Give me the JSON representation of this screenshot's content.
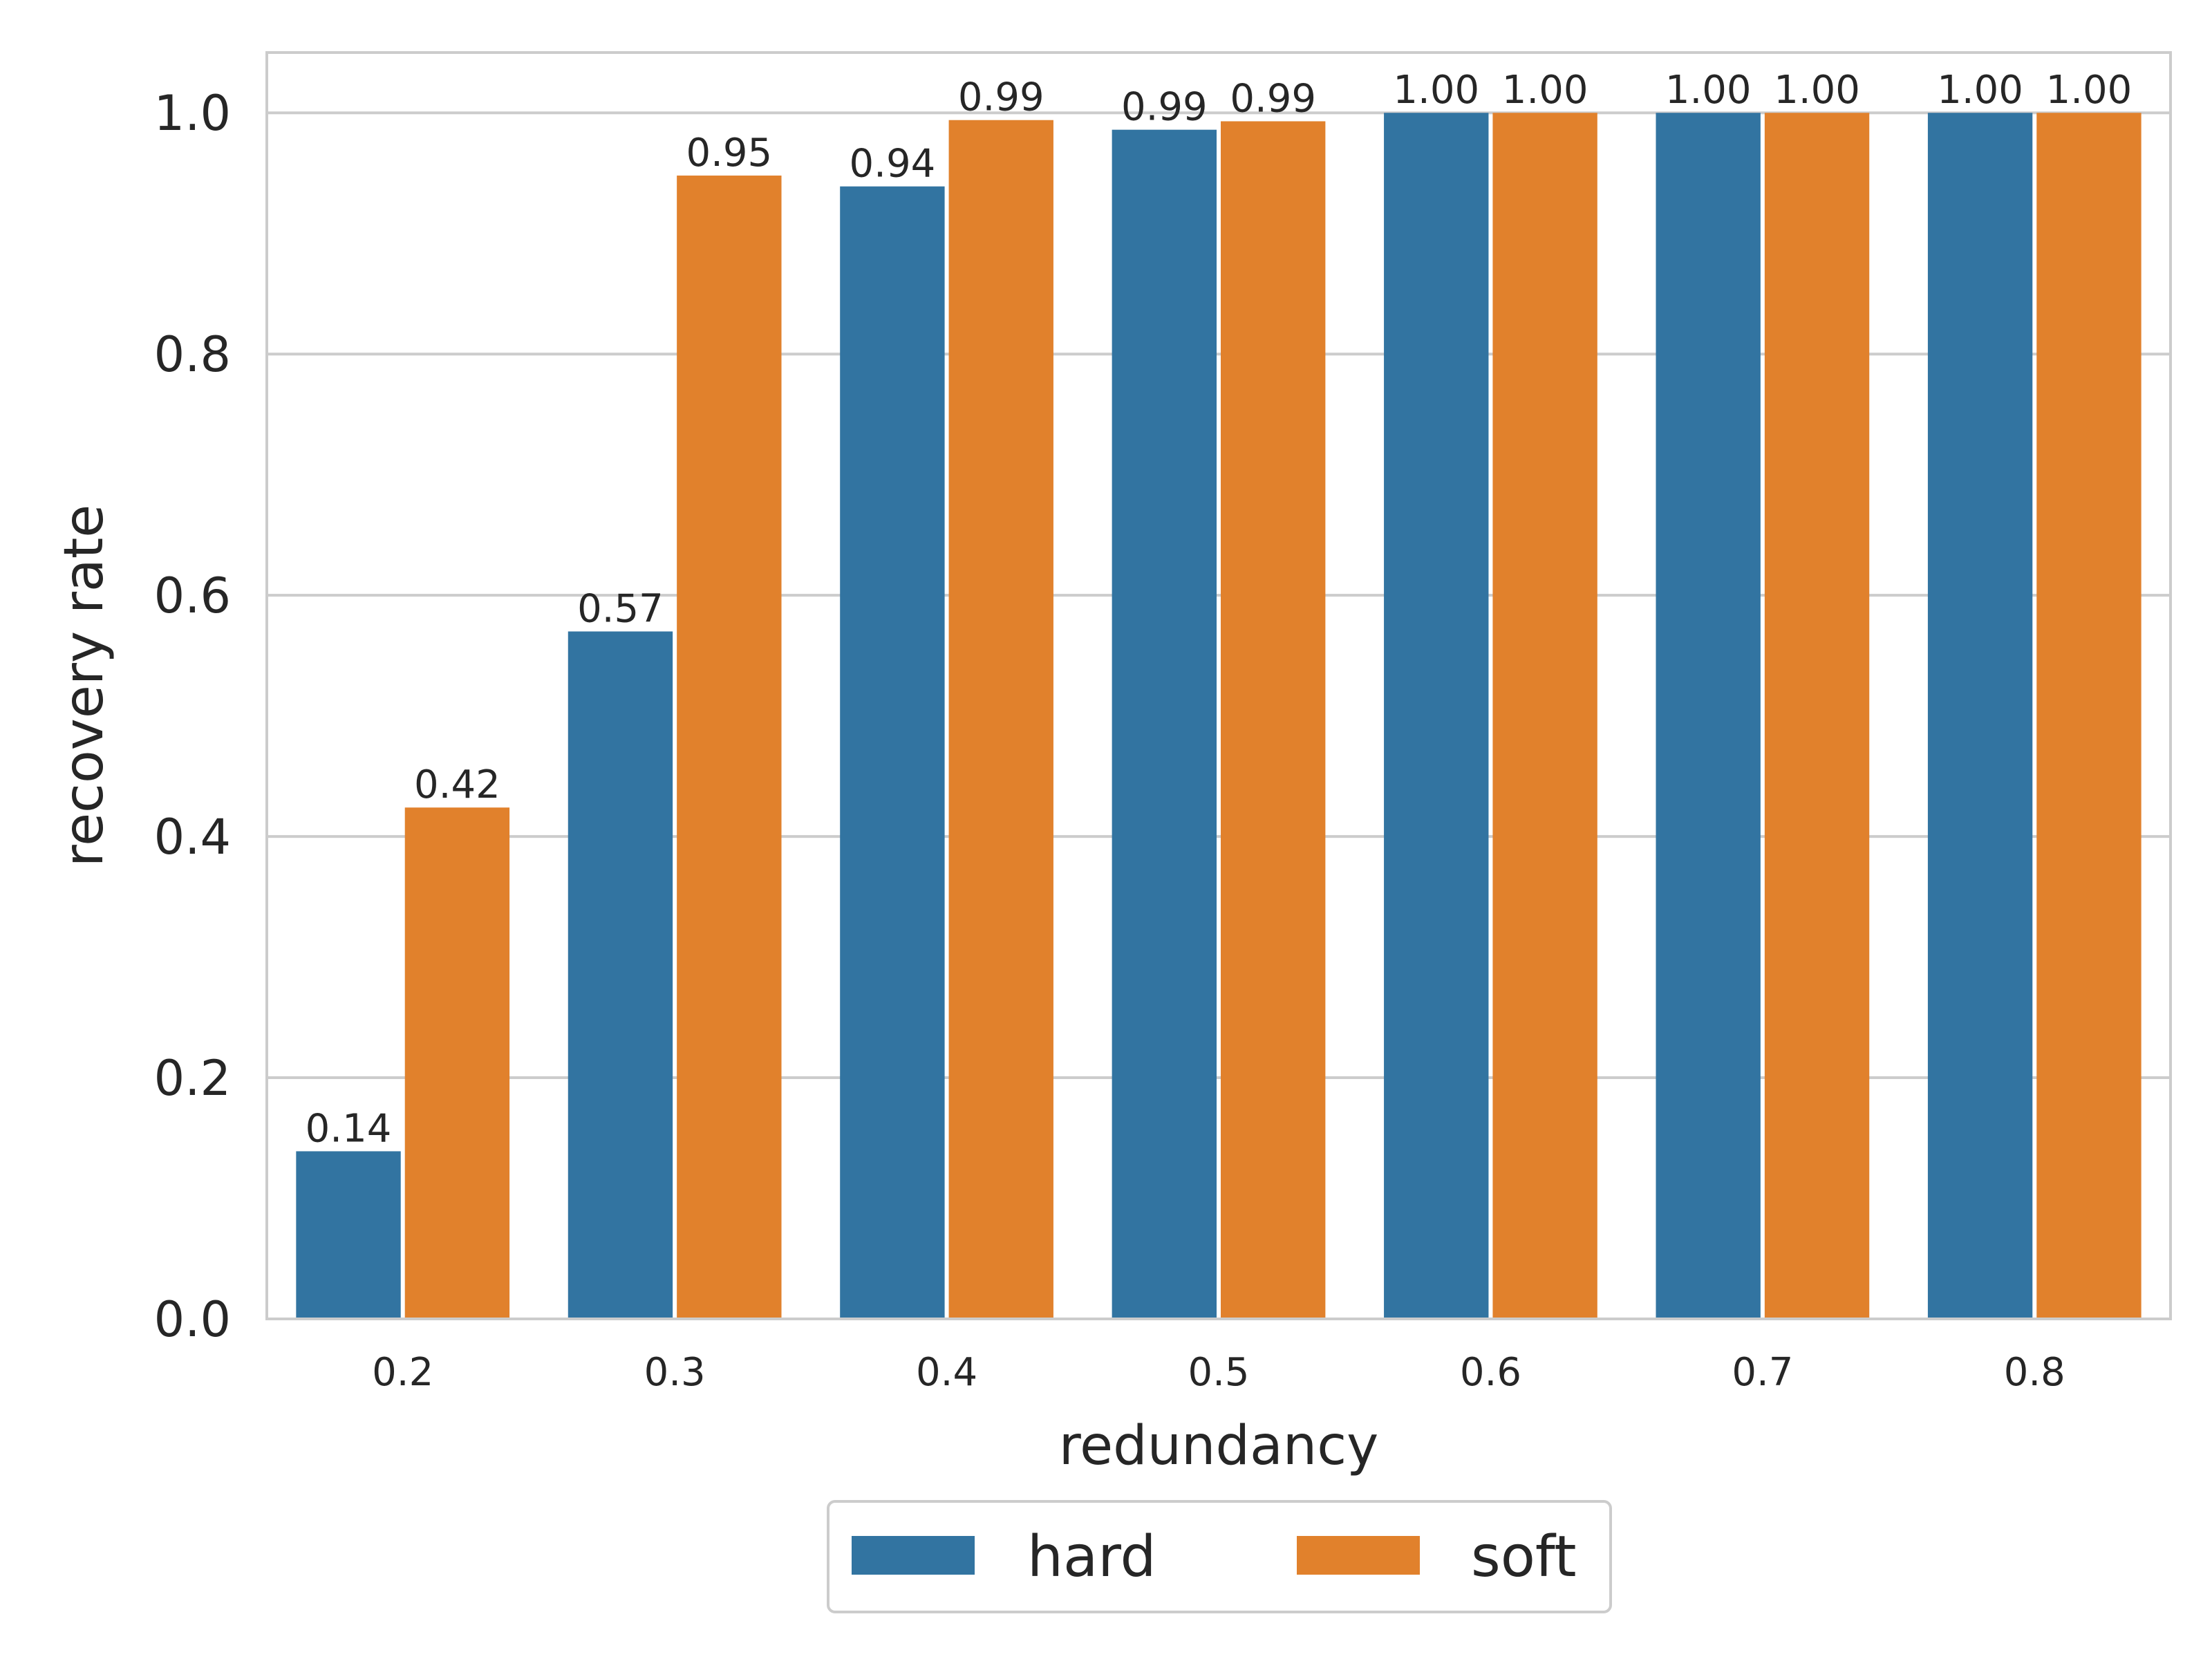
{
  "chart_data": {
    "type": "bar",
    "categories": [
      "0.2",
      "0.3",
      "0.4",
      "0.5",
      "0.6",
      "0.7",
      "0.8"
    ],
    "series": [
      {
        "name": "hard",
        "color": "#3274a1",
        "values": [
          0.139,
          0.57,
          0.939,
          0.986,
          1.0,
          1.0,
          1.0
        ],
        "labels": [
          "0.14",
          "0.57",
          "0.94",
          "0.99",
          "1.00",
          "1.00",
          "1.00"
        ]
      },
      {
        "name": "soft",
        "color": "#e1812c",
        "values": [
          0.424,
          0.948,
          0.994,
          0.993,
          1.0,
          1.0,
          1.0
        ],
        "labels": [
          "0.42",
          "0.95",
          "0.99",
          "0.99",
          "1.00",
          "1.00",
          "1.00"
        ]
      }
    ],
    "title": "",
    "xlabel": "redundancy",
    "ylabel": "recovery rate",
    "ylim": [
      0,
      1.05
    ],
    "yticks": [
      "0.0",
      "0.2",
      "0.4",
      "0.6",
      "0.8",
      "1.0"
    ],
    "grid": "horizontal",
    "legend_position": "bottom-center"
  }
}
